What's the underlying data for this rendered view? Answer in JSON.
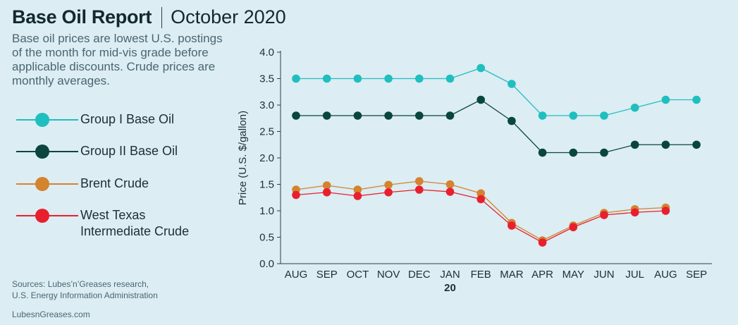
{
  "header": {
    "title": "Base Oil Report",
    "date": "October 2020"
  },
  "subtitle": "Base oil prices are lowest U.S. postings of the month for mid-vis grade before applicable discounts. Crude prices are monthly averages.",
  "sources": {
    "line1": "Sources: Lubes’n’Greases research,",
    "line2": "U.S. Energy Information Administration"
  },
  "site": "LubesnGreases.com",
  "chart_data": {
    "type": "line",
    "title": "",
    "xlabel": "",
    "ylabel": "Price (U.S. $/gallon)",
    "ylim": [
      0,
      4
    ],
    "yticks": [
      "0.0",
      "0.5",
      "1.0",
      "1.5",
      "2.0",
      "2.5",
      "3.0",
      "3.5",
      "4.0"
    ],
    "categories": [
      "AUG",
      "SEP",
      "OCT",
      "NOV",
      "DEC",
      "JAN",
      "FEB",
      "MAR",
      "APR",
      "MAY",
      "JUN",
      "JUL",
      "AUG",
      "SEP"
    ],
    "year_marker": {
      "category_index": 5,
      "label": "20"
    },
    "grid": false,
    "legend_position": "left",
    "series": [
      {
        "name": "Group I Base Oil",
        "color": "#1fbfbf",
        "values": [
          3.5,
          3.5,
          3.5,
          3.5,
          3.5,
          3.5,
          3.7,
          3.4,
          2.8,
          2.8,
          2.8,
          2.95,
          3.1,
          3.1
        ]
      },
      {
        "name": "Group II Base Oil",
        "color": "#0a4540",
        "values": [
          2.8,
          2.8,
          2.8,
          2.8,
          2.8,
          2.8,
          3.1,
          2.7,
          2.1,
          2.1,
          2.1,
          2.25,
          2.25,
          2.25
        ]
      },
      {
        "name": "Brent Crude",
        "color": "#d4832e",
        "values": [
          1.4,
          1.48,
          1.4,
          1.49,
          1.56,
          1.5,
          1.33,
          0.77,
          0.44,
          0.72,
          0.96,
          1.03,
          1.06,
          null
        ]
      },
      {
        "name": "West Texas Intermediate Crude",
        "color": "#e8202e",
        "values": [
          1.3,
          1.35,
          1.28,
          1.35,
          1.4,
          1.36,
          1.22,
          0.72,
          0.4,
          0.69,
          0.92,
          0.97,
          1.0,
          null
        ]
      }
    ]
  }
}
